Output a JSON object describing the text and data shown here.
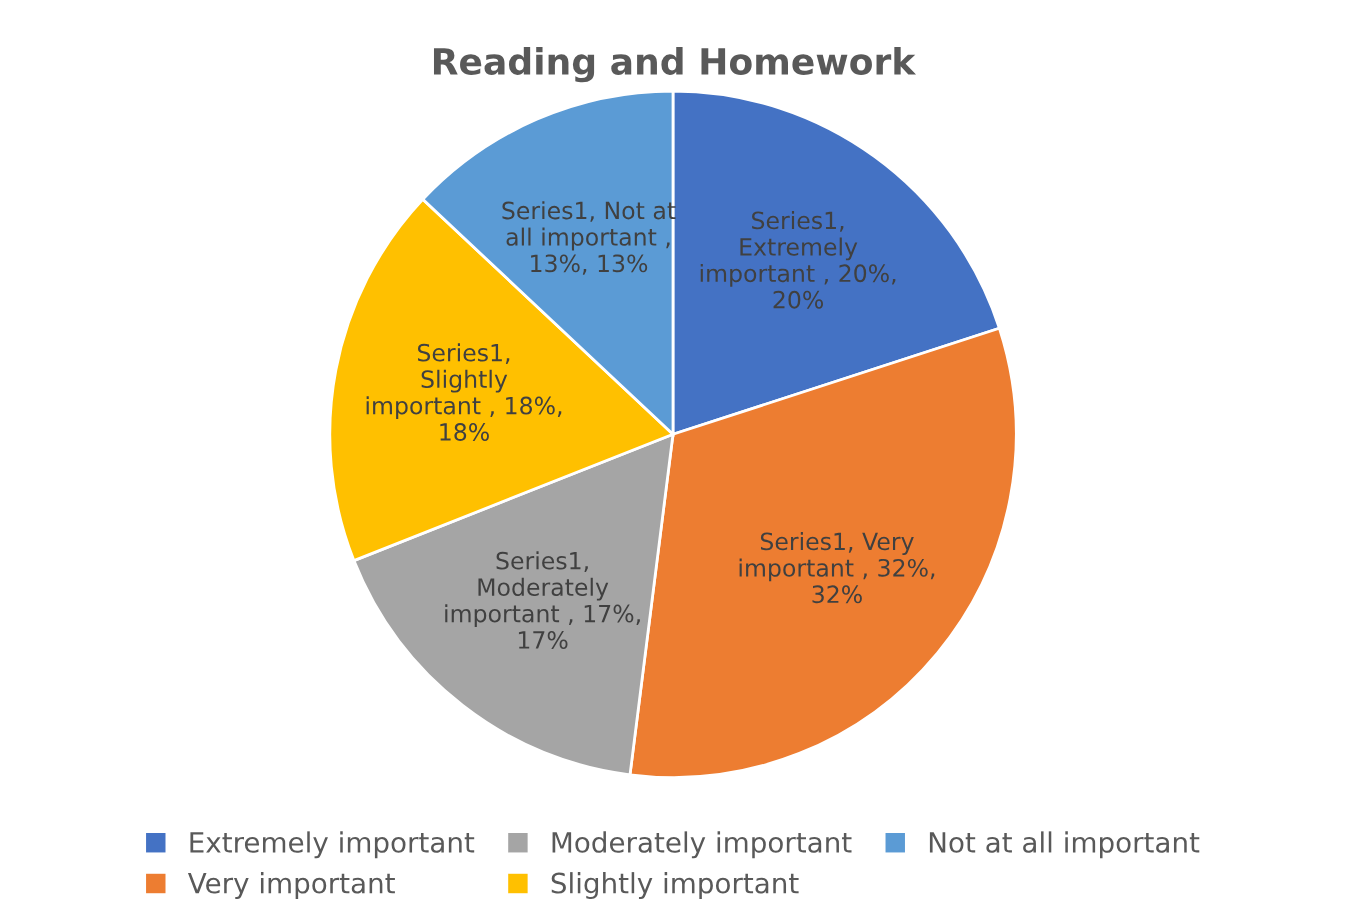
{
  "chart_data": {
    "type": "pie",
    "title": "Reading and Homework",
    "categories": [
      "Extremely important",
      "Very important",
      "Moderately important",
      "Slightly important",
      "Not at all important"
    ],
    "values": [
      20,
      32,
      17,
      18,
      13
    ],
    "colors": [
      "#4472c4",
      "#ed7d31",
      "#a5a5a5",
      "#ffc000",
      "#5b9bd5"
    ],
    "value_labels": [
      "Series1, Extremely important , 20%, 20%",
      "Series1, Very important , 32%, 32%",
      "Series1, Moderately important , 17%, 17%",
      "Series1, Slightly important , 18%, 18%",
      "Series1, Not at all important , 13%, 13%"
    ],
    "legend": "bottom"
  }
}
